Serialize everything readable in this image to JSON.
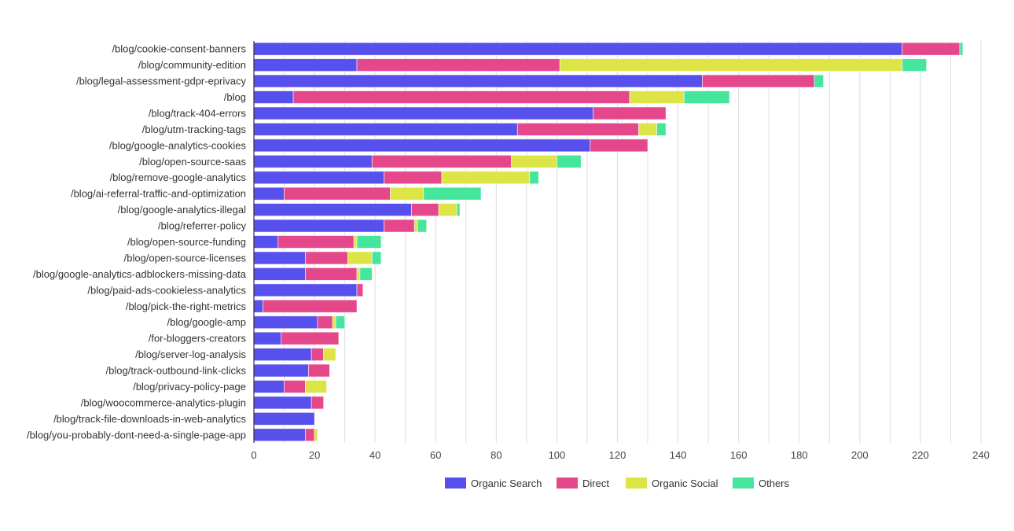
{
  "chart_data": {
    "type": "bar",
    "orientation": "horizontal",
    "stacked": true,
    "title": "",
    "xlabel": "",
    "ylabel": "",
    "xlim": [
      0,
      240
    ],
    "x_ticks": [
      0,
      20,
      40,
      60,
      80,
      100,
      120,
      140,
      160,
      180,
      200,
      220,
      240
    ],
    "grid": true,
    "legend_position": "bottom",
    "categories": [
      "/blog/cookie-consent-banners",
      "/blog/community-edition",
      "/blog/legal-assessment-gdpr-eprivacy",
      "/blog",
      "/blog/track-404-errors",
      "/blog/utm-tracking-tags",
      "/blog/google-analytics-cookies",
      "/blog/open-source-saas",
      "/blog/remove-google-analytics",
      "/blog/ai-referral-traffic-and-optimization",
      "/blog/google-analytics-illegal",
      "/blog/referrer-policy",
      "/blog/open-source-funding",
      "/blog/open-source-licenses",
      "/blog/google-analytics-adblockers-missing-data",
      "/blog/paid-ads-cookieless-analytics",
      "/blog/pick-the-right-metrics",
      "/blog/google-amp",
      "/for-bloggers-creators",
      "/blog/server-log-analysis",
      "/blog/track-outbound-link-clicks",
      "/blog/privacy-policy-page",
      "/blog/woocommerce-analytics-plugin",
      "/blog/track-file-downloads-in-web-analytics",
      "/blog/you-probably-dont-need-a-single-page-app"
    ],
    "series": [
      {
        "name": "Organic Search",
        "color": "#5850ec",
        "values": [
          214,
          34,
          148,
          13,
          112,
          87,
          111,
          39,
          43,
          10,
          52,
          43,
          8,
          17,
          17,
          34,
          3,
          21,
          9,
          19,
          18,
          10,
          19,
          20,
          17
        ]
      },
      {
        "name": "Direct",
        "color": "#e5478b",
        "values": [
          19,
          67,
          37,
          111,
          24,
          40,
          19,
          46,
          19,
          35,
          9,
          10,
          25,
          14,
          17,
          2,
          31,
          5,
          19,
          4,
          7,
          7,
          4,
          0,
          3
        ]
      },
      {
        "name": "Organic Social",
        "color": "#dde546",
        "values": [
          0,
          113,
          0,
          18,
          0,
          6,
          0,
          15,
          29,
          11,
          6,
          1,
          1,
          8,
          1,
          0,
          0,
          1,
          0,
          4,
          0,
          7,
          0,
          0,
          1
        ]
      },
      {
        "name": "Others",
        "color": "#46e59c",
        "values": [
          1,
          8,
          3,
          15,
          0,
          3,
          0,
          8,
          3,
          19,
          1,
          3,
          8,
          3,
          4,
          0,
          0,
          3,
          0,
          0,
          0,
          0,
          0,
          0,
          0
        ]
      }
    ]
  }
}
